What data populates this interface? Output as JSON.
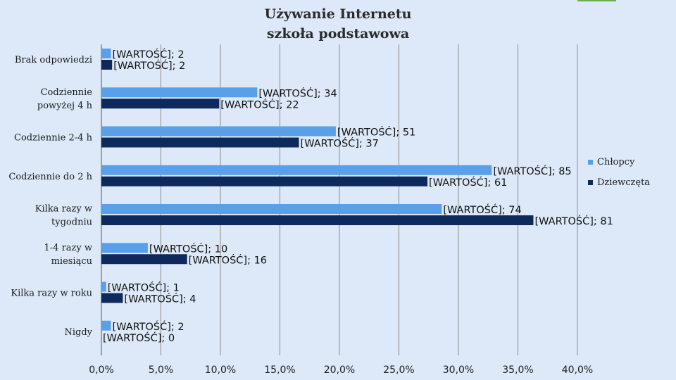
{
  "chart_data": {
    "type": "bar",
    "orientation": "horizontal",
    "title_line1": "Używanie Internetu",
    "title_line2": "szkoła podstawowa",
    "categories": [
      "Brak odpowiedzi",
      "Codziennie powyżej 4 h",
      "Codziennie 2-4 h",
      "Codziennie do 2 h",
      "Kilka razy w tygodniu",
      "1-4 razy w miesiącu",
      "Kilka razy w roku",
      "Nigdy"
    ],
    "category_lines": [
      [
        "Brak odpowiedzi"
      ],
      [
        "Codziennie",
        "powyżej 4 h"
      ],
      [
        "Codziennie 2-4 h"
      ],
      [
        "Codziennie do 2 h"
      ],
      [
        "Kilka razy w",
        "tygodniu"
      ],
      [
        "1-4 razy w",
        "miesiącu"
      ],
      [
        "Kilka razy w roku"
      ],
      [
        "Nigdy"
      ]
    ],
    "series": [
      {
        "name": "Chłopcy",
        "color": "#5aa0e8",
        "percent": [
          0.8,
          13.1,
          19.7,
          32.8,
          28.6,
          3.9,
          0.4,
          0.8
        ],
        "labels": [
          "[WARTOŚĆ]; 2",
          "[WARTOŚĆ]; 34",
          "[WARTOŚĆ]; 51",
          "[WARTOŚĆ]; 85",
          "[WARTOŚĆ]; 74",
          "[WARTOŚĆ]; 10",
          "[WARTOŚĆ]; 1",
          "[WARTOŚĆ]; 2"
        ]
      },
      {
        "name": "Dziewczęta",
        "color": "#0e2a5c",
        "percent": [
          0.9,
          9.9,
          16.6,
          27.4,
          36.3,
          7.2,
          1.8,
          0.0
        ],
        "labels": [
          "[WARTOŚĆ]; 2",
          "[WARTOŚĆ]; 22",
          "[WARTOŚĆ]; 37",
          "[WARTOŚĆ]; 61",
          "[WARTOŚĆ]; 81",
          "[WARTOŚĆ]; 16",
          "[WARTOŚĆ]; 4",
          "[WARTOŚĆ]; 0"
        ]
      }
    ],
    "xlim": [
      0,
      40
    ],
    "x_ticks": [
      0,
      5,
      10,
      15,
      20,
      25,
      30,
      35,
      40
    ],
    "x_tick_labels": [
      "0,0%",
      "5,0%",
      "10,0%",
      "15,0%",
      "20,0%",
      "25,0%",
      "30,0%",
      "35,0%",
      "40,0%"
    ],
    "legend_position": "right",
    "grid": "vertical"
  }
}
